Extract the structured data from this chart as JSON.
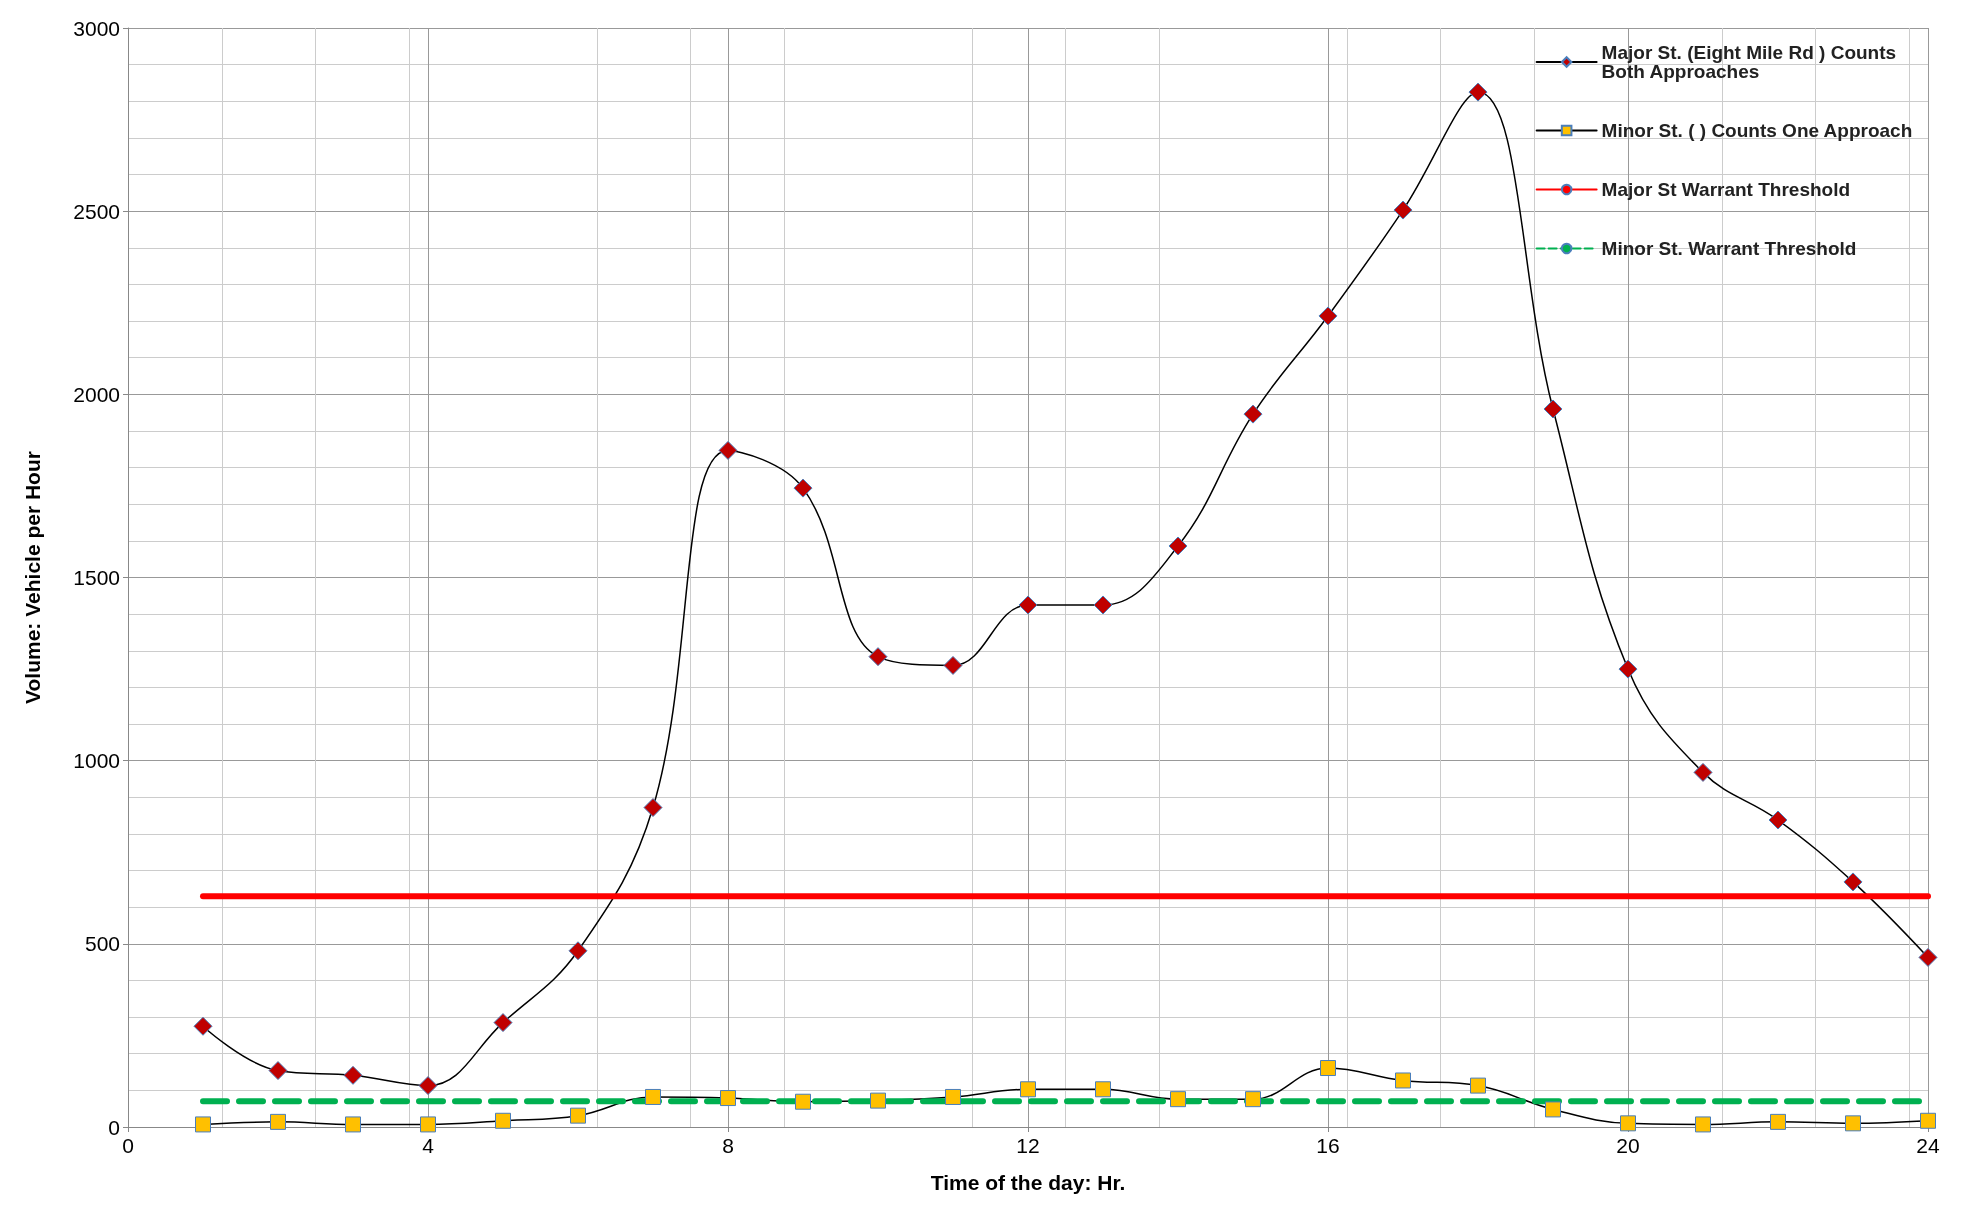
{
  "chart_data": {
    "type": "line",
    "xlabel": "Time of the day: Hr.",
    "ylabel": "Volume: Vehicle per Hour",
    "x": [
      1,
      2,
      3,
      4,
      5,
      6,
      7,
      8,
      9,
      10,
      11,
      12,
      13,
      14,
      15,
      16,
      17,
      18,
      19,
      20,
      21,
      22,
      23,
      24
    ],
    "series": [
      {
        "name": "Major St. (Eight Mile Rd ) Counts Both Approaches",
        "color": "#c00000",
        "marker": "diamond",
        "line_style": "solid",
        "values": [
          275,
          154,
          141,
          113,
          285,
          481,
          872,
          1847,
          1744,
          1284,
          1260,
          1425,
          1425,
          1586,
          1946,
          2214,
          2503,
          2825,
          1960,
          1250,
          968,
          838,
          669,
          463
        ]
      },
      {
        "name": "Minor St. ( ) Counts One Approach",
        "color": "#ffc000",
        "marker": "square",
        "line_style": "solid",
        "values": [
          7,
          14,
          7,
          7,
          17,
          31,
          82,
          79,
          69,
          72,
          82,
          103,
          103,
          76,
          76,
          161,
          127,
          113,
          48,
          10,
          7,
          14,
          10,
          17
        ]
      },
      {
        "name": "Major St Warrant Threshold",
        "color": "#ff0000",
        "marker": "none",
        "line_style": "solid",
        "values": [
          630,
          630,
          630,
          630,
          630,
          630,
          630,
          630,
          630,
          630,
          630,
          630,
          630,
          630,
          630,
          630,
          630,
          630,
          630,
          630,
          630,
          630,
          630,
          630
        ]
      },
      {
        "name": "Minor St. Warrant Threshold",
        "color": "#00b050",
        "marker": "none",
        "line_style": "dashed",
        "values": [
          70,
          70,
          70,
          70,
          70,
          70,
          70,
          70,
          70,
          70,
          70,
          70,
          70,
          70,
          70,
          70,
          70,
          70,
          70,
          70,
          70,
          70,
          70,
          70
        ]
      }
    ],
    "xlim": [
      0,
      24
    ],
    "xticks": [
      0,
      4,
      8,
      12,
      16,
      20,
      24
    ],
    "ylim": [
      0,
      3000
    ],
    "yticks": [
      0,
      500,
      1000,
      1500,
      2000,
      2500,
      3000
    ],
    "grid": true,
    "legend": "top right"
  }
}
